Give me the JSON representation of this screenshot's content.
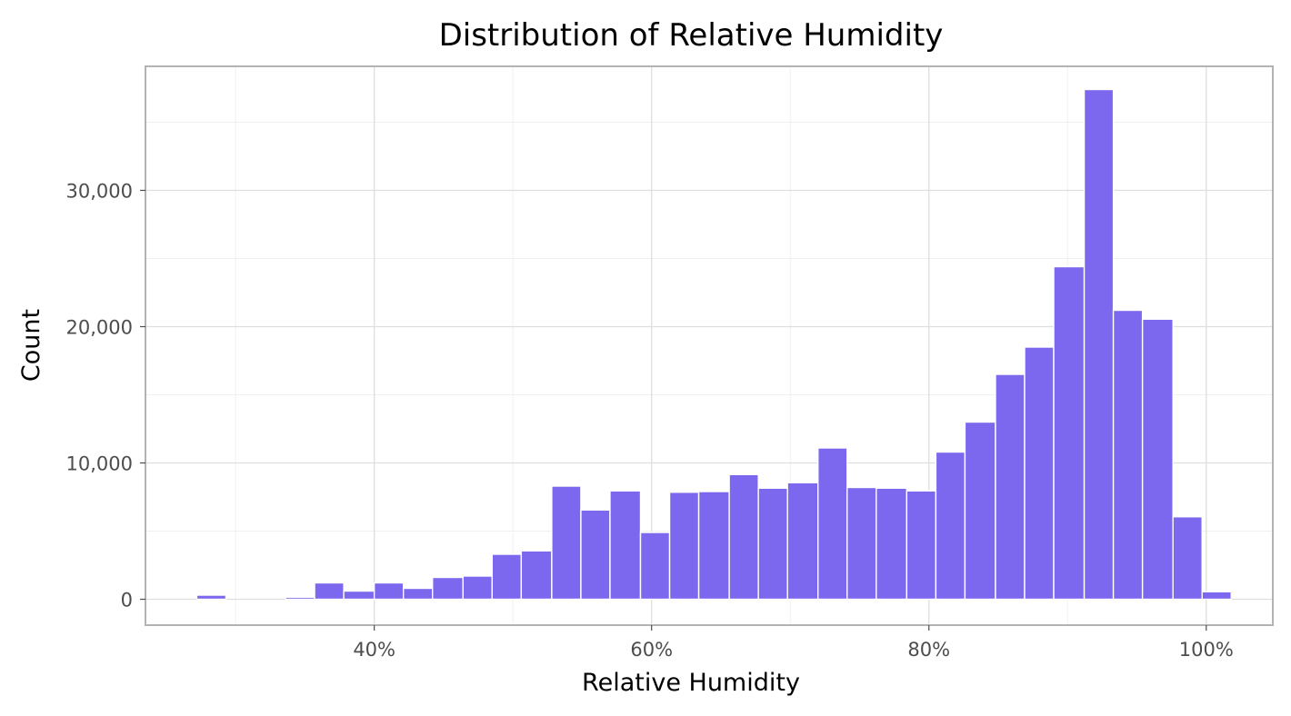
{
  "colors": {
    "bar_fill": "#7b68ee",
    "bar_stroke": "#ffffff",
    "panel_border": "#b3b3b3",
    "grid_major": "#dedede",
    "grid_minor": "#f0f0f0",
    "tick_text": "#4d4d4d",
    "text": "#000000"
  },
  "chart_data": {
    "type": "histogram",
    "title": "Distribution of Relative Humidity",
    "xlabel": "Relative Humidity",
    "ylabel": "Count",
    "x_unit": "percent",
    "xlim": [
      23.5,
      104.8
    ],
    "ylim": [
      -1900,
      39100
    ],
    "x_ticks": [
      {
        "value": 40,
        "label": "40%"
      },
      {
        "value": 60,
        "label": "60%"
      },
      {
        "value": 80,
        "label": "80%"
      },
      {
        "value": 100,
        "label": "100%"
      }
    ],
    "x_minor_ticks": [
      30,
      50,
      70,
      90
    ],
    "y_ticks": [
      {
        "value": 0,
        "label": "0"
      },
      {
        "value": 10000,
        "label": "10,000"
      },
      {
        "value": 20000,
        "label": "20,000"
      },
      {
        "value": 30000,
        "label": "30,000"
      }
    ],
    "y_minor_ticks": [
      5000,
      15000,
      25000,
      35000
    ],
    "grid": true,
    "legend": "none",
    "bin_width": 2.13,
    "bins": [
      {
        "start": 27.2,
        "end": 29.3,
        "count": 300
      },
      {
        "start": 29.3,
        "end": 31.5,
        "count": 0
      },
      {
        "start": 31.5,
        "end": 33.6,
        "count": 0
      },
      {
        "start": 33.6,
        "end": 35.7,
        "count": 150
      },
      {
        "start": 35.7,
        "end": 37.8,
        "count": 1200
      },
      {
        "start": 37.8,
        "end": 40.0,
        "count": 600
      },
      {
        "start": 40.0,
        "end": 42.1,
        "count": 1200
      },
      {
        "start": 42.1,
        "end": 44.2,
        "count": 800
      },
      {
        "start": 44.2,
        "end": 46.4,
        "count": 1600
      },
      {
        "start": 46.4,
        "end": 48.5,
        "count": 1700
      },
      {
        "start": 48.5,
        "end": 50.6,
        "count": 3300
      },
      {
        "start": 50.6,
        "end": 52.8,
        "count": 3550
      },
      {
        "start": 52.8,
        "end": 54.9,
        "count": 8300
      },
      {
        "start": 54.9,
        "end": 57.0,
        "count": 6550
      },
      {
        "start": 57.0,
        "end": 59.2,
        "count": 7950
      },
      {
        "start": 59.2,
        "end": 61.3,
        "count": 4900
      },
      {
        "start": 61.3,
        "end": 63.4,
        "count": 7850
      },
      {
        "start": 63.4,
        "end": 65.6,
        "count": 7900
      },
      {
        "start": 65.6,
        "end": 67.7,
        "count": 9150
      },
      {
        "start": 67.7,
        "end": 69.8,
        "count": 8150
      },
      {
        "start": 69.8,
        "end": 72.0,
        "count": 8550
      },
      {
        "start": 72.0,
        "end": 74.1,
        "count": 11100
      },
      {
        "start": 74.1,
        "end": 76.2,
        "count": 8200
      },
      {
        "start": 76.2,
        "end": 78.4,
        "count": 8150
      },
      {
        "start": 78.4,
        "end": 80.5,
        "count": 7950
      },
      {
        "start": 80.5,
        "end": 82.6,
        "count": 10800
      },
      {
        "start": 82.6,
        "end": 84.8,
        "count": 13000
      },
      {
        "start": 84.8,
        "end": 86.9,
        "count": 16500
      },
      {
        "start": 86.9,
        "end": 89.0,
        "count": 18500
      },
      {
        "start": 89.0,
        "end": 91.2,
        "count": 24400
      },
      {
        "start": 91.2,
        "end": 93.3,
        "count": 37400
      },
      {
        "start": 93.3,
        "end": 95.4,
        "count": 21200
      },
      {
        "start": 95.4,
        "end": 97.6,
        "count": 20550
      },
      {
        "start": 97.6,
        "end": 99.7,
        "count": 6050
      },
      {
        "start": 99.7,
        "end": 101.8,
        "count": 550
      }
    ]
  }
}
